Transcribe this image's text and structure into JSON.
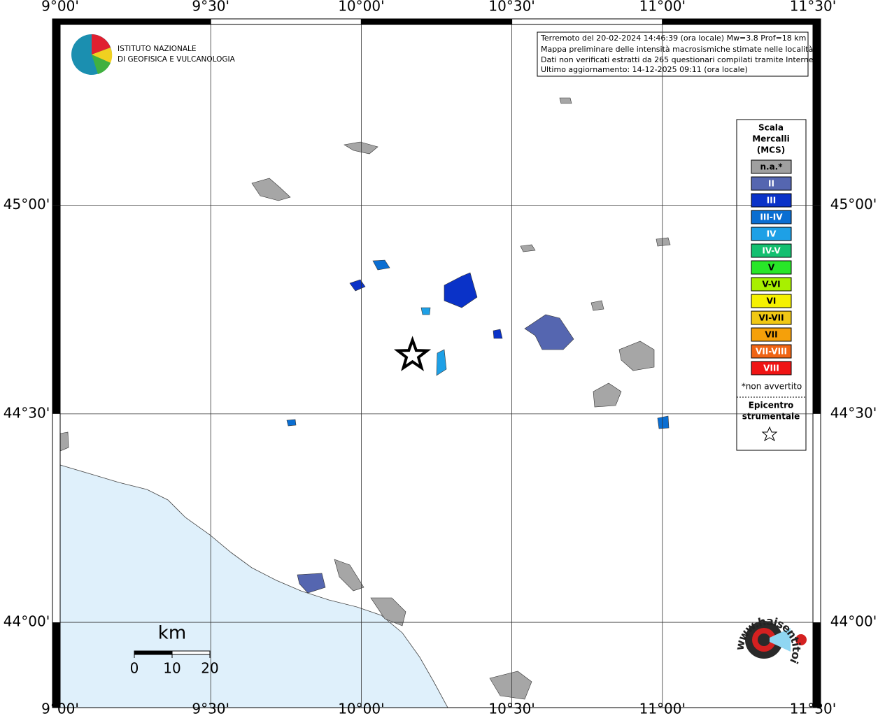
{
  "map": {
    "lonlim": [
      9.0,
      11.5
    ],
    "latlim": [
      43.809,
      45.447
    ],
    "lonticks": [
      {
        "value": 9.0,
        "label": "9°00'"
      },
      {
        "value": 9.5,
        "label": "9°30'"
      },
      {
        "value": 10.0,
        "label": "10°00'"
      },
      {
        "value": 10.5,
        "label": "10°30'"
      },
      {
        "value": 11.0,
        "label": "11°00'"
      },
      {
        "value": 11.5,
        "label": "11°30'"
      }
    ],
    "latticks": [
      {
        "value": 45.0,
        "label": "45°00'"
      },
      {
        "value": 44.5,
        "label": "44°30'"
      },
      {
        "value": 44.0,
        "label": "44°00'"
      }
    ],
    "grid": true,
    "epicenter": {
      "lon": 10.17,
      "lat": 44.64
    },
    "institute": [
      "ISTITUTO NAZIONALE",
      "DI GEOFISICA E VULCANOLOGIA"
    ],
    "info": [
      "Terremoto del 20-02-2024 14:46:39 (ora locale) Mw=3.8 Prof=18 km",
      "Mappa preliminare delle intensità macrosismiche stimate nelle località",
      "Dati non verificati estratti da 265 questionari compilati tramite Internet.",
      "Ultimo aggiornamento: 14-12-2025 09:11 (ora locale)"
    ],
    "legend": {
      "title": [
        "Scala",
        "Mercalli",
        "(MCS)"
      ],
      "items": [
        {
          "label": "n.a.*",
          "color": "#a0a0a0"
        },
        {
          "label": "II",
          "color": "#5566b0"
        },
        {
          "label": "III",
          "color": "#0a32c8"
        },
        {
          "label": "III-IV",
          "color": "#0a6ed2"
        },
        {
          "label": "IV",
          "color": "#1ea0e6"
        },
        {
          "label": "IV-V",
          "color": "#14c070"
        },
        {
          "label": "V",
          "color": "#28e628"
        },
        {
          "label": "V-VI",
          "color": "#a8f000"
        },
        {
          "label": "VI",
          "color": "#f5f000"
        },
        {
          "label": "VI-VII",
          "color": "#f0c814"
        },
        {
          "label": "VII",
          "color": "#f5a00a"
        },
        {
          "label": "VII-VIII",
          "color": "#f06414"
        },
        {
          "label": "VIII",
          "color": "#f01414"
        }
      ],
      "note": "*non avvertito",
      "epicenter_label": [
        "Epicentro",
        "strumentale"
      ]
    },
    "scale_bar": {
      "unit": "km",
      "ticks": [
        0,
        10,
        20
      ]
    },
    "site": "www.haisentitoilterremoto.it"
  }
}
